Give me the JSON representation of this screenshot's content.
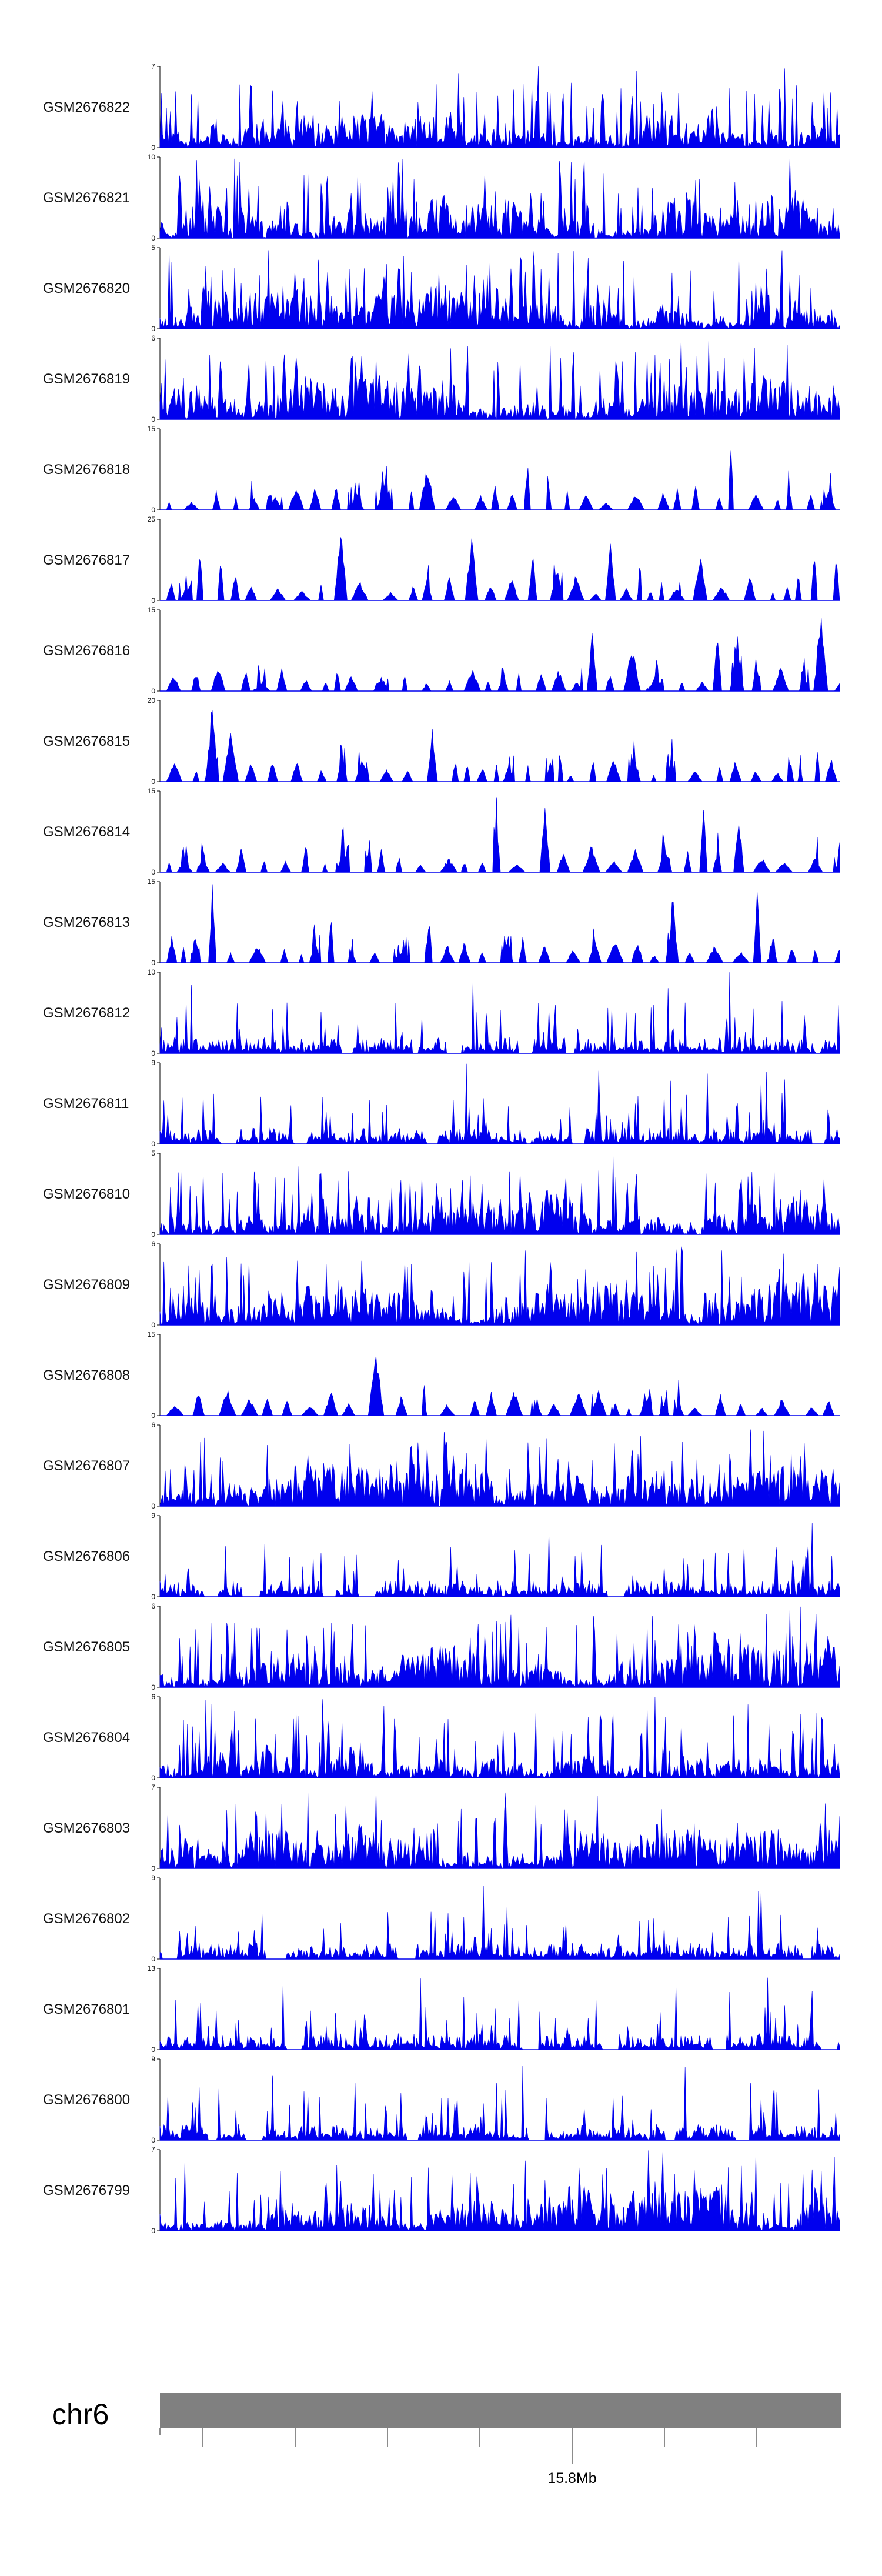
{
  "chart_data": {
    "type": "area",
    "series_color": "#0000ee",
    "chromosome_bar_color": "#808080",
    "tracks": [
      {
        "name": "GSM2676822",
        "ymax": 7,
        "ymin": 0,
        "seed": 11,
        "style": "dense"
      },
      {
        "name": "GSM2676821",
        "ymax": 10,
        "ymin": 0,
        "seed": 23,
        "style": "dense"
      },
      {
        "name": "GSM2676820",
        "ymax": 5,
        "ymin": 0,
        "seed": 37,
        "style": "dense"
      },
      {
        "name": "GSM2676819",
        "ymax": 6,
        "ymin": 0,
        "seed": 41,
        "style": "dense"
      },
      {
        "name": "GSM2676818",
        "ymax": 15,
        "ymin": 0,
        "seed": 53,
        "style": "sparse"
      },
      {
        "name": "GSM2676817",
        "ymax": 25,
        "ymin": 0,
        "seed": 67,
        "style": "sparse"
      },
      {
        "name": "GSM2676816",
        "ymax": 15,
        "ymin": 0,
        "seed": 71,
        "style": "sparse"
      },
      {
        "name": "GSM2676815",
        "ymax": 20,
        "ymin": 0,
        "seed": 83,
        "style": "sparse"
      },
      {
        "name": "GSM2676814",
        "ymax": 15,
        "ymin": 0,
        "seed": 97,
        "style": "sparse"
      },
      {
        "name": "GSM2676813",
        "ymax": 15,
        "ymin": 0,
        "seed": 101,
        "style": "sparse"
      },
      {
        "name": "GSM2676812",
        "ymax": 10,
        "ymin": 0,
        "seed": 113,
        "style": "medium"
      },
      {
        "name": "GSM2676811",
        "ymax": 9,
        "ymin": 0,
        "seed": 127,
        "style": "medium"
      },
      {
        "name": "GSM2676810",
        "ymax": 5,
        "ymin": 0,
        "seed": 131,
        "style": "dense"
      },
      {
        "name": "GSM2676809",
        "ymax": 6,
        "ymin": 0,
        "seed": 149,
        "style": "dense"
      },
      {
        "name": "GSM2676808",
        "ymax": 15,
        "ymin": 0,
        "seed": 151,
        "style": "sparse"
      },
      {
        "name": "GSM2676807",
        "ymax": 6,
        "ymin": 0,
        "seed": 163,
        "style": "dense"
      },
      {
        "name": "GSM2676806",
        "ymax": 9,
        "ymin": 0,
        "seed": 173,
        "style": "medium"
      },
      {
        "name": "GSM2676805",
        "ymax": 6,
        "ymin": 0,
        "seed": 181,
        "style": "dense"
      },
      {
        "name": "GSM2676804",
        "ymax": 6,
        "ymin": 0,
        "seed": 191,
        "style": "dense"
      },
      {
        "name": "GSM2676803",
        "ymax": 7,
        "ymin": 0,
        "seed": 197,
        "style": "dense"
      },
      {
        "name": "GSM2676802",
        "ymax": 9,
        "ymin": 0,
        "seed": 211,
        "style": "medium"
      },
      {
        "name": "GSM2676801",
        "ymax": 13,
        "ymin": 0,
        "seed": 223,
        "style": "medium"
      },
      {
        "name": "GSM2676800",
        "ymax": 9,
        "ymin": 0,
        "seed": 227,
        "style": "medium"
      },
      {
        "name": "GSM2676799",
        "ymax": 7,
        "ymin": 0,
        "seed": 239,
        "style": "dense"
      }
    ],
    "x_axis": {
      "chromosome": "chr6",
      "labels": [
        {
          "text": "15.8Mb",
          "tick_index": 4
        }
      ],
      "tick_count": 7
    }
  }
}
